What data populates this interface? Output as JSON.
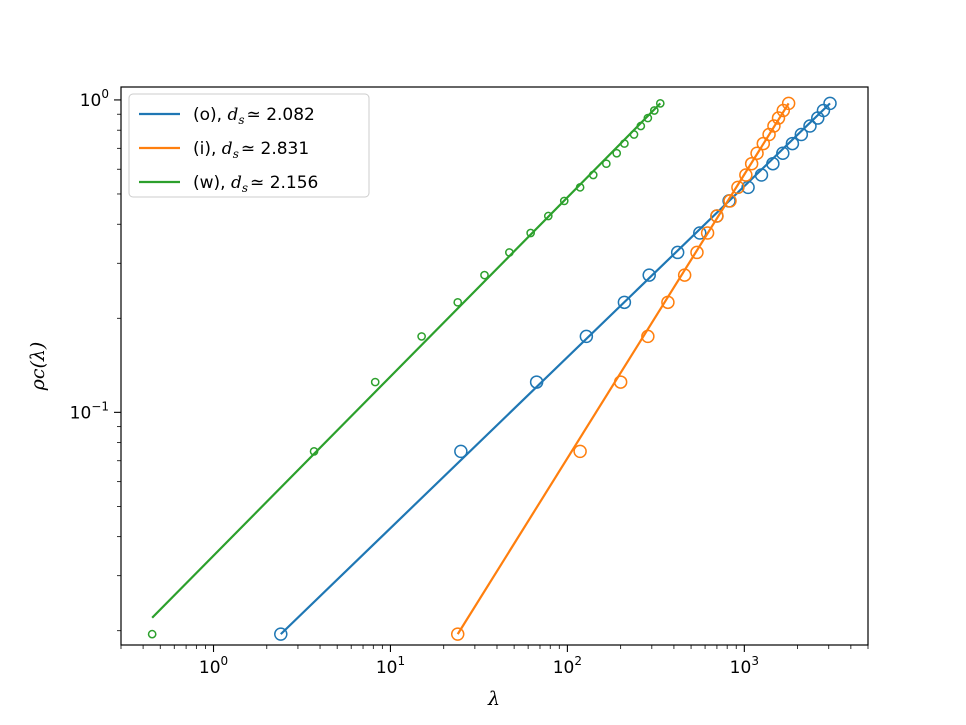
{
  "chart_data": {
    "type": "scatter",
    "xscale": "log",
    "yscale": "log",
    "xlim": [
      0.3,
      5000
    ],
    "ylim": [
      0.018,
      1.1
    ],
    "xlabel": "λ",
    "ylabel": "ρc(λ)",
    "x_ticks": [
      {
        "value": 1,
        "base": "10",
        "exp": "0"
      },
      {
        "value": 10,
        "base": "10",
        "exp": "1"
      },
      {
        "value": 100,
        "base": "10",
        "exp": "2"
      },
      {
        "value": 1000,
        "base": "10",
        "exp": "3"
      }
    ],
    "y_ticks": [
      {
        "value": 0.1,
        "base": "10",
        "exp": "−1"
      },
      {
        "value": 1,
        "base": "10",
        "exp": "0"
      }
    ],
    "legend_position": "upper-left",
    "series": [
      {
        "name": "(o), d_s ≃ 2.082",
        "label_prefix": "(o), ",
        "label_symbol": "d",
        "label_sub": "s",
        "label_value": "≃  2.082",
        "color": "#1f77b4",
        "marker_size": "large",
        "points": [
          [
            2.4,
            0.0195
          ],
          [
            25,
            0.075
          ],
          [
            67,
            0.125
          ],
          [
            128,
            0.175
          ],
          [
            210,
            0.225
          ],
          [
            290,
            0.275
          ],
          [
            420,
            0.325
          ],
          [
            560,
            0.375
          ],
          [
            700,
            0.425
          ],
          [
            820,
            0.475
          ],
          [
            1050,
            0.525
          ],
          [
            1250,
            0.575
          ],
          [
            1450,
            0.625
          ],
          [
            1650,
            0.675
          ],
          [
            1870,
            0.725
          ],
          [
            2100,
            0.775
          ],
          [
            2350,
            0.825
          ],
          [
            2600,
            0.875
          ],
          [
            2800,
            0.925
          ],
          [
            3050,
            0.975
          ]
        ],
        "fit_line": [
          [
            2.4,
            0.0195
          ],
          [
            3050,
            0.975
          ]
        ]
      },
      {
        "name": "(i), d_s ≃ 2.831",
        "label_prefix": "(i), ",
        "label_symbol": "d",
        "label_sub": "s",
        "label_value": "≃  2.831",
        "color": "#ff7f0e",
        "marker_size": "large",
        "points": [
          [
            24,
            0.0195
          ],
          [
            118,
            0.075
          ],
          [
            200,
            0.125
          ],
          [
            285,
            0.175
          ],
          [
            370,
            0.225
          ],
          [
            460,
            0.275
          ],
          [
            540,
            0.325
          ],
          [
            620,
            0.375
          ],
          [
            700,
            0.425
          ],
          [
            830,
            0.475
          ],
          [
            920,
            0.525
          ],
          [
            1020,
            0.575
          ],
          [
            1100,
            0.625
          ],
          [
            1180,
            0.675
          ],
          [
            1280,
            0.725
          ],
          [
            1380,
            0.775
          ],
          [
            1470,
            0.825
          ],
          [
            1560,
            0.875
          ],
          [
            1660,
            0.925
          ],
          [
            1780,
            0.975
          ]
        ],
        "fit_line": [
          [
            24,
            0.0195
          ],
          [
            1780,
            0.975
          ]
        ]
      },
      {
        "name": "(w), d_s ≃ 2.156",
        "label_prefix": "(w), ",
        "label_symbol": "d",
        "label_sub": "s",
        "label_value": "≃  2.156",
        "color": "#2ca02c",
        "marker_size": "small",
        "points": [
          [
            0.45,
            0.0195
          ],
          [
            3.7,
            0.075
          ],
          [
            8.2,
            0.125
          ],
          [
            15,
            0.175
          ],
          [
            24,
            0.225
          ],
          [
            34,
            0.275
          ],
          [
            47,
            0.325
          ],
          [
            62,
            0.375
          ],
          [
            78,
            0.425
          ],
          [
            96,
            0.475
          ],
          [
            118,
            0.525
          ],
          [
            140,
            0.575
          ],
          [
            166,
            0.625
          ],
          [
            190,
            0.675
          ],
          [
            210,
            0.725
          ],
          [
            238,
            0.775
          ],
          [
            260,
            0.825
          ],
          [
            285,
            0.875
          ],
          [
            310,
            0.925
          ],
          [
            335,
            0.975
          ]
        ],
        "fit_line": [
          [
            0.45,
            0.022
          ],
          [
            335,
            0.975
          ]
        ]
      }
    ]
  }
}
